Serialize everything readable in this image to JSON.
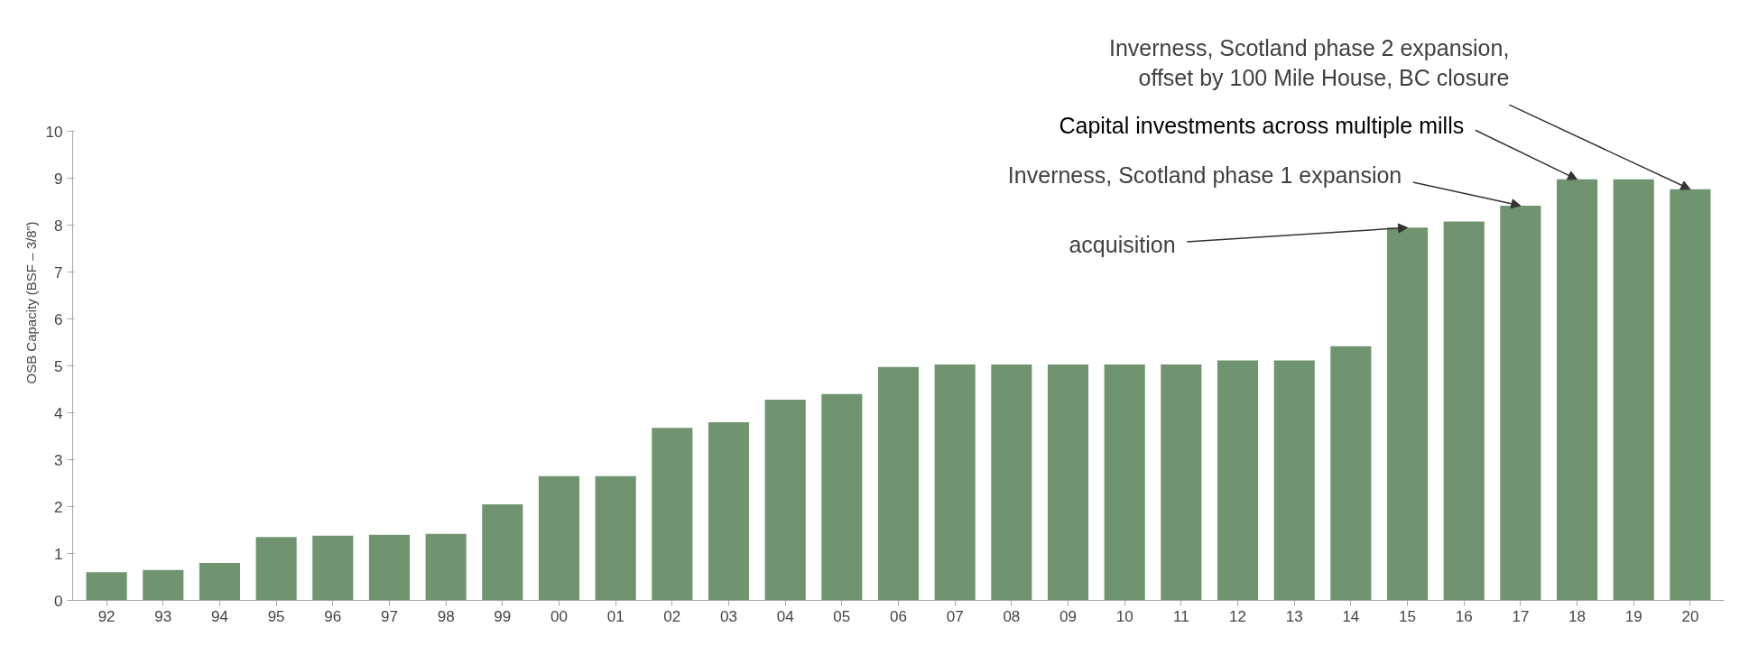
{
  "chart_data": {
    "type": "bar",
    "ylabel": "OSB Capacity (BSF – 3/8”)",
    "categories": [
      "92",
      "93",
      "94",
      "95",
      "96",
      "97",
      "98",
      "99",
      "00",
      "01",
      "02",
      "03",
      "04",
      "05",
      "06",
      "07",
      "08",
      "09",
      "10",
      "11",
      "12",
      "13",
      "14",
      "15",
      "16",
      "17",
      "18",
      "19",
      "20"
    ],
    "values": [
      0.6,
      0.65,
      0.8,
      1.35,
      1.38,
      1.4,
      1.42,
      2.05,
      2.65,
      2.65,
      3.68,
      3.8,
      4.28,
      4.4,
      4.98,
      5.03,
      5.03,
      5.03,
      5.03,
      5.03,
      5.12,
      5.12,
      5.42,
      7.95,
      8.08,
      8.42,
      8.98,
      8.98,
      8.77
    ],
    "color": "#70946f",
    "ylim": [
      0,
      10
    ],
    "yticks": [
      0,
      1,
      2,
      3,
      4,
      5,
      6,
      7,
      8,
      9,
      10
    ],
    "grid": false,
    "annotations": [
      {
        "text": "acquisition",
        "x": "15",
        "y": 7.95
      },
      {
        "text": "Inverness, Scotland phase 1 expansion",
        "x": "17",
        "y": 8.42
      },
      {
        "text": "Capital investments across multiple mills",
        "x": "18",
        "y": 8.98
      },
      {
        "text": "Inverness, Scotland phase 2 expansion,\noffset by 100 Mile House, BC closure",
        "x": "20",
        "y": 8.77
      }
    ]
  }
}
